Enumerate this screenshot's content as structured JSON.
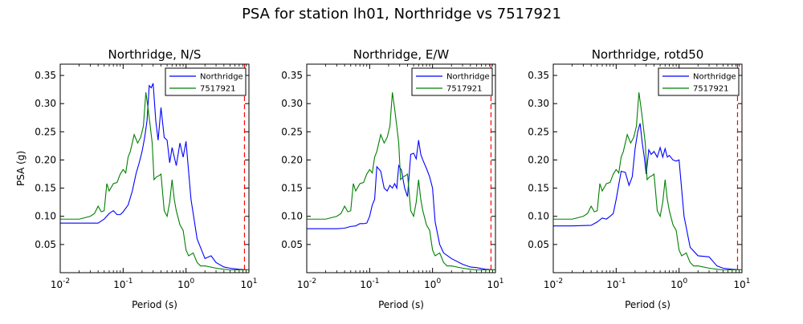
{
  "figure": {
    "title": "PSA for station lh01, Northridge vs 7517921"
  },
  "chart_data": [
    {
      "type": "line",
      "title": "Northridge, N/S",
      "xlabel": "Period (s)",
      "ylabel": "PSA (g)",
      "xscale": "log",
      "xlim": [
        0.01,
        10
      ],
      "ylim": [
        0.0,
        0.37
      ],
      "xticks": [
        "10^-2",
        "10^-1",
        "10^0",
        "10^1"
      ],
      "yticks": [
        0.05,
        0.1,
        0.15,
        0.2,
        0.25,
        0.3,
        0.35
      ],
      "legend": "top-right",
      "cutoff_period": 8.5,
      "series": [
        {
          "name": "Northridge",
          "color": "#0000ff",
          "x": [
            0.01,
            0.02,
            0.04,
            0.05,
            0.06,
            0.07,
            0.08,
            0.09,
            0.1,
            0.12,
            0.14,
            0.16,
            0.18,
            0.2,
            0.22,
            0.24,
            0.26,
            0.28,
            0.3,
            0.33,
            0.36,
            0.4,
            0.45,
            0.5,
            0.55,
            0.6,
            0.7,
            0.8,
            0.9,
            1.0,
            1.2,
            1.5,
            2.0,
            2.5,
            3.0,
            4.0,
            5.0,
            7.0,
            10.0
          ],
          "y": [
            0.088,
            0.088,
            0.088,
            0.095,
            0.105,
            0.11,
            0.103,
            0.103,
            0.108,
            0.12,
            0.145,
            0.175,
            0.195,
            0.215,
            0.24,
            0.27,
            0.332,
            0.328,
            0.336,
            0.27,
            0.235,
            0.293,
            0.24,
            0.235,
            0.195,
            0.222,
            0.19,
            0.23,
            0.205,
            0.233,
            0.13,
            0.06,
            0.025,
            0.03,
            0.018,
            0.01,
            0.008,
            0.006,
            0.005
          ]
        },
        {
          "name": "7517921",
          "color": "#008000",
          "x": [
            0.01,
            0.02,
            0.03,
            0.035,
            0.04,
            0.045,
            0.05,
            0.055,
            0.06,
            0.07,
            0.08,
            0.09,
            0.1,
            0.11,
            0.12,
            0.13,
            0.15,
            0.17,
            0.19,
            0.21,
            0.23,
            0.25,
            0.27,
            0.29,
            0.31,
            0.34,
            0.37,
            0.4,
            0.45,
            0.5,
            0.55,
            0.6,
            0.65,
            0.7,
            0.8,
            0.9,
            1.0,
            1.1,
            1.3,
            1.5,
            1.7,
            2.0,
            3.0,
            4.0,
            5.0,
            7.0,
            10.0
          ],
          "y": [
            0.095,
            0.095,
            0.1,
            0.105,
            0.118,
            0.108,
            0.11,
            0.158,
            0.145,
            0.158,
            0.16,
            0.175,
            0.183,
            0.177,
            0.205,
            0.215,
            0.245,
            0.23,
            0.24,
            0.26,
            0.32,
            0.29,
            0.26,
            0.23,
            0.165,
            0.17,
            0.172,
            0.175,
            0.11,
            0.1,
            0.125,
            0.165,
            0.13,
            0.11,
            0.085,
            0.075,
            0.04,
            0.03,
            0.035,
            0.018,
            0.012,
            0.012,
            0.008,
            0.006,
            0.005,
            0.005,
            0.005
          ]
        }
      ]
    },
    {
      "type": "line",
      "title": "Northridge, E/W",
      "xlabel": "Period (s)",
      "ylabel": "",
      "xscale": "log",
      "xlim": [
        0.01,
        10
      ],
      "ylim": [
        0.0,
        0.37
      ],
      "xticks": [
        "10^-2",
        "10^-1",
        "10^0",
        "10^1"
      ],
      "yticks": [
        0.05,
        0.1,
        0.15,
        0.2,
        0.25,
        0.3,
        0.35
      ],
      "legend": "top-right",
      "cutoff_period": 8.5,
      "series": [
        {
          "name": "Northridge",
          "color": "#0000ff",
          "x": [
            0.01,
            0.02,
            0.03,
            0.04,
            0.05,
            0.06,
            0.07,
            0.08,
            0.09,
            0.1,
            0.11,
            0.12,
            0.13,
            0.15,
            0.17,
            0.19,
            0.21,
            0.23,
            0.25,
            0.27,
            0.29,
            0.32,
            0.36,
            0.4,
            0.45,
            0.5,
            0.55,
            0.6,
            0.65,
            0.7,
            0.8,
            0.9,
            1.0,
            1.1,
            1.3,
            1.5,
            2.0,
            3.0,
            4.0,
            5.0,
            7.0,
            10.0
          ],
          "y": [
            0.078,
            0.078,
            0.078,
            0.079,
            0.082,
            0.083,
            0.087,
            0.087,
            0.088,
            0.1,
            0.12,
            0.13,
            0.188,
            0.18,
            0.15,
            0.145,
            0.155,
            0.15,
            0.158,
            0.15,
            0.19,
            0.182,
            0.15,
            0.135,
            0.21,
            0.212,
            0.202,
            0.235,
            0.21,
            0.2,
            0.185,
            0.17,
            0.15,
            0.09,
            0.05,
            0.035,
            0.025,
            0.015,
            0.01,
            0.009,
            0.006,
            0.005
          ]
        },
        {
          "name": "7517921",
          "color": "#008000",
          "x": [
            0.01,
            0.02,
            0.03,
            0.035,
            0.04,
            0.045,
            0.05,
            0.055,
            0.06,
            0.07,
            0.08,
            0.09,
            0.1,
            0.11,
            0.12,
            0.13,
            0.15,
            0.17,
            0.19,
            0.21,
            0.23,
            0.25,
            0.27,
            0.29,
            0.31,
            0.34,
            0.37,
            0.4,
            0.45,
            0.5,
            0.55,
            0.6,
            0.65,
            0.7,
            0.8,
            0.9,
            1.0,
            1.1,
            1.3,
            1.5,
            1.7,
            2.0,
            3.0,
            4.0,
            5.0,
            7.0,
            10.0
          ],
          "y": [
            0.095,
            0.095,
            0.1,
            0.105,
            0.118,
            0.108,
            0.11,
            0.158,
            0.145,
            0.158,
            0.16,
            0.175,
            0.183,
            0.177,
            0.205,
            0.215,
            0.245,
            0.23,
            0.24,
            0.26,
            0.32,
            0.29,
            0.26,
            0.23,
            0.165,
            0.17,
            0.172,
            0.175,
            0.11,
            0.1,
            0.125,
            0.165,
            0.13,
            0.11,
            0.085,
            0.075,
            0.04,
            0.03,
            0.035,
            0.018,
            0.012,
            0.012,
            0.008,
            0.006,
            0.005,
            0.005,
            0.005
          ]
        }
      ]
    },
    {
      "type": "line",
      "title": "Northridge, rotd50",
      "xlabel": "Period (s)",
      "ylabel": "",
      "xscale": "log",
      "xlim": [
        0.01,
        10
      ],
      "ylim": [
        0.0,
        0.37
      ],
      "xticks": [
        "10^-2",
        "10^-1",
        "10^0",
        "10^1"
      ],
      "yticks": [
        0.05,
        0.1,
        0.15,
        0.2,
        0.25,
        0.3,
        0.35
      ],
      "legend": "top-right",
      "cutoff_period": 8.5,
      "series": [
        {
          "name": "Northridge",
          "color": "#0000ff",
          "x": [
            0.01,
            0.02,
            0.04,
            0.05,
            0.06,
            0.07,
            0.08,
            0.09,
            0.1,
            0.12,
            0.14,
            0.16,
            0.18,
            0.2,
            0.22,
            0.24,
            0.26,
            0.28,
            0.3,
            0.33,
            0.36,
            0.4,
            0.45,
            0.5,
            0.55,
            0.6,
            0.65,
            0.7,
            0.8,
            0.9,
            1.0,
            1.2,
            1.5,
            2.0,
            3.0,
            4.0,
            5.0,
            7.0,
            10.0
          ],
          "y": [
            0.083,
            0.083,
            0.084,
            0.09,
            0.097,
            0.095,
            0.1,
            0.105,
            0.13,
            0.18,
            0.178,
            0.155,
            0.17,
            0.22,
            0.25,
            0.265,
            0.23,
            0.205,
            0.175,
            0.218,
            0.21,
            0.215,
            0.205,
            0.222,
            0.205,
            0.22,
            0.205,
            0.208,
            0.2,
            0.198,
            0.2,
            0.1,
            0.045,
            0.03,
            0.028,
            0.012,
            0.008,
            0.006,
            0.005
          ]
        },
        {
          "name": "7517921",
          "color": "#008000",
          "x": [
            0.01,
            0.02,
            0.03,
            0.035,
            0.04,
            0.045,
            0.05,
            0.055,
            0.06,
            0.07,
            0.08,
            0.09,
            0.1,
            0.11,
            0.12,
            0.13,
            0.15,
            0.17,
            0.19,
            0.21,
            0.23,
            0.25,
            0.27,
            0.29,
            0.31,
            0.34,
            0.37,
            0.4,
            0.45,
            0.5,
            0.55,
            0.6,
            0.65,
            0.7,
            0.8,
            0.9,
            1.0,
            1.1,
            1.3,
            1.5,
            1.7,
            2.0,
            3.0,
            4.0,
            5.0,
            7.0,
            10.0
          ],
          "y": [
            0.095,
            0.095,
            0.1,
            0.105,
            0.118,
            0.108,
            0.11,
            0.158,
            0.145,
            0.158,
            0.16,
            0.175,
            0.183,
            0.177,
            0.205,
            0.215,
            0.245,
            0.23,
            0.24,
            0.26,
            0.32,
            0.29,
            0.26,
            0.23,
            0.165,
            0.17,
            0.172,
            0.175,
            0.11,
            0.1,
            0.125,
            0.165,
            0.13,
            0.11,
            0.085,
            0.075,
            0.04,
            0.03,
            0.035,
            0.018,
            0.012,
            0.012,
            0.008,
            0.006,
            0.005,
            0.005,
            0.005
          ]
        }
      ]
    }
  ]
}
